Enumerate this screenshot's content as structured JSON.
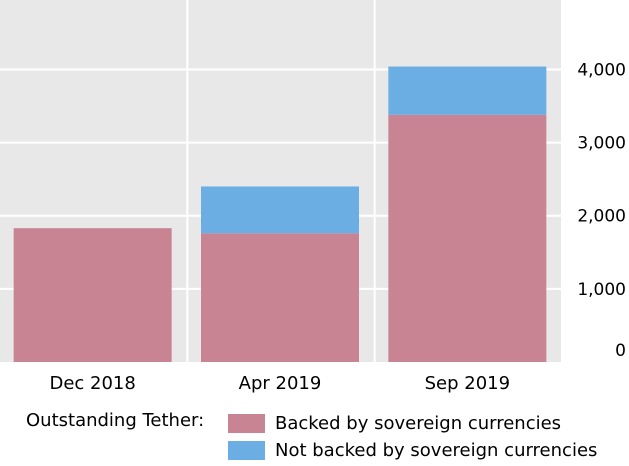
{
  "chart_data": {
    "type": "bar",
    "stacked": true,
    "categories": [
      "Dec 2018",
      "Apr 2019",
      "Sep 2019"
    ],
    "series": [
      {
        "name": "Backed by sovereign currencies",
        "values": [
          1830,
          1760,
          3380
        ],
        "color": "#c98494"
      },
      {
        "name": "Not backed by sovereign currencies",
        "values": [
          0,
          640,
          660
        ],
        "color": "#6aaee3"
      }
    ],
    "y_ticks": [
      "0",
      "1,000",
      "2,000",
      "3,000",
      "4,000"
    ],
    "ylim": [
      0,
      4950
    ],
    "y_axis_side": "right",
    "grid": true,
    "background": "#e8e8e8",
    "legend": {
      "title": "Outstanding Tether:",
      "placement": "bottom"
    }
  }
}
